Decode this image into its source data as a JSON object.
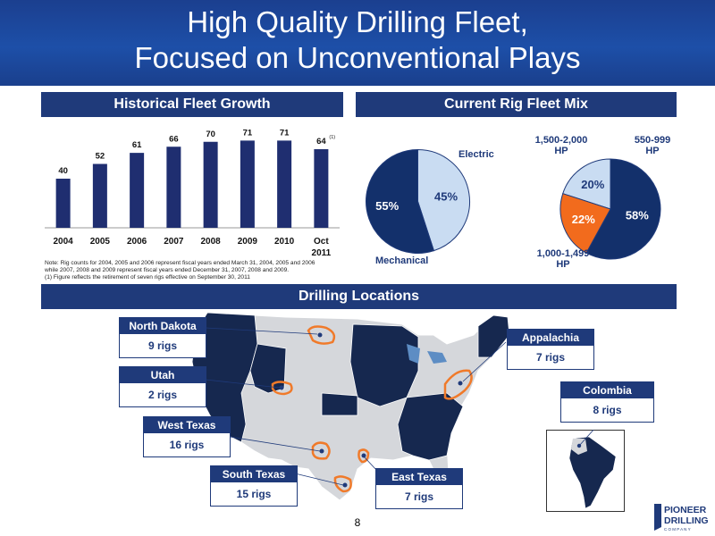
{
  "title": {
    "line1": "High Quality Drilling Fleet,",
    "line2": "Focused on Unconventional Plays"
  },
  "sections": {
    "fleet_growth": "Historical Fleet Growth",
    "rig_mix": "Current Rig Fleet Mix",
    "locations": "Drilling Locations"
  },
  "chart_data": [
    {
      "type": "bar",
      "categories": [
        "2004",
        "2005",
        "2006",
        "2007",
        "2008",
        "2009",
        "2010",
        "Oct 2011"
      ],
      "values": [
        40,
        52,
        61,
        66,
        70,
        71,
        71,
        64
      ],
      "annotations": [
        {
          "category": "Oct 2011",
          "text": "(1)"
        }
      ],
      "ylim": [
        0,
        80
      ],
      "color": "#1f2e70"
    },
    {
      "type": "pie",
      "labels": [
        "Electric",
        "Mechanical"
      ],
      "values": [
        45,
        55
      ],
      "value_labels": [
        "45%",
        "55%"
      ],
      "colors": [
        "#c9dcf2",
        "#13306b"
      ]
    },
    {
      "type": "pie",
      "labels": [
        "550-999 HP",
        "1,000-1,499 HP",
        "1,500-2,000 HP"
      ],
      "values": [
        20,
        58,
        22
      ],
      "value_labels": [
        "20%",
        "58%",
        "22%"
      ],
      "colors": [
        "#c9dcf2",
        "#13306b",
        "#f26b1d"
      ]
    }
  ],
  "pie_labels": {
    "electric": "Electric",
    "mechanical": "Mechanical",
    "hp_1500_a": "1,500-2,000",
    "hp_1500_b": "HP",
    "hp_550_a": "550-999",
    "hp_550_b": "HP",
    "hp_1000_a": "1,000-1,499",
    "hp_1000_b": "HP"
  },
  "note": {
    "line1": "Note: Rig counts for 2004, 2005 and 2006 represent fiscal years ended March 31, 2004, 2005 and 2006",
    "line2": "while 2007, 2008 and 2009 represent fiscal years ended December 31, 2007, 2008 and 2009.",
    "line3": "(1)  Figure reflects the retirement of seven rigs effective on September 30, 2011"
  },
  "locations": {
    "north_dakota": {
      "name": "North Dakota",
      "rigs": "9 rigs"
    },
    "utah": {
      "name": "Utah",
      "rigs": "2 rigs"
    },
    "west_texas": {
      "name": "West Texas",
      "rigs": "16 rigs"
    },
    "south_texas": {
      "name": "South Texas",
      "rigs": "15 rigs"
    },
    "east_texas": {
      "name": "East Texas",
      "rigs": "7 rigs"
    },
    "appalachia": {
      "name": "Appalachia",
      "rigs": "7 rigs"
    },
    "colombia": {
      "name": "Colombia",
      "rigs": "8 rigs"
    }
  },
  "map_colors": {
    "dark": "#16284f",
    "light": "#d5d7db",
    "highlight": "#f07a2a"
  },
  "page_number": "8",
  "logo": {
    "line1": "PIONEER",
    "line2": "DRILLING",
    "line3": "C O M P A N Y"
  }
}
